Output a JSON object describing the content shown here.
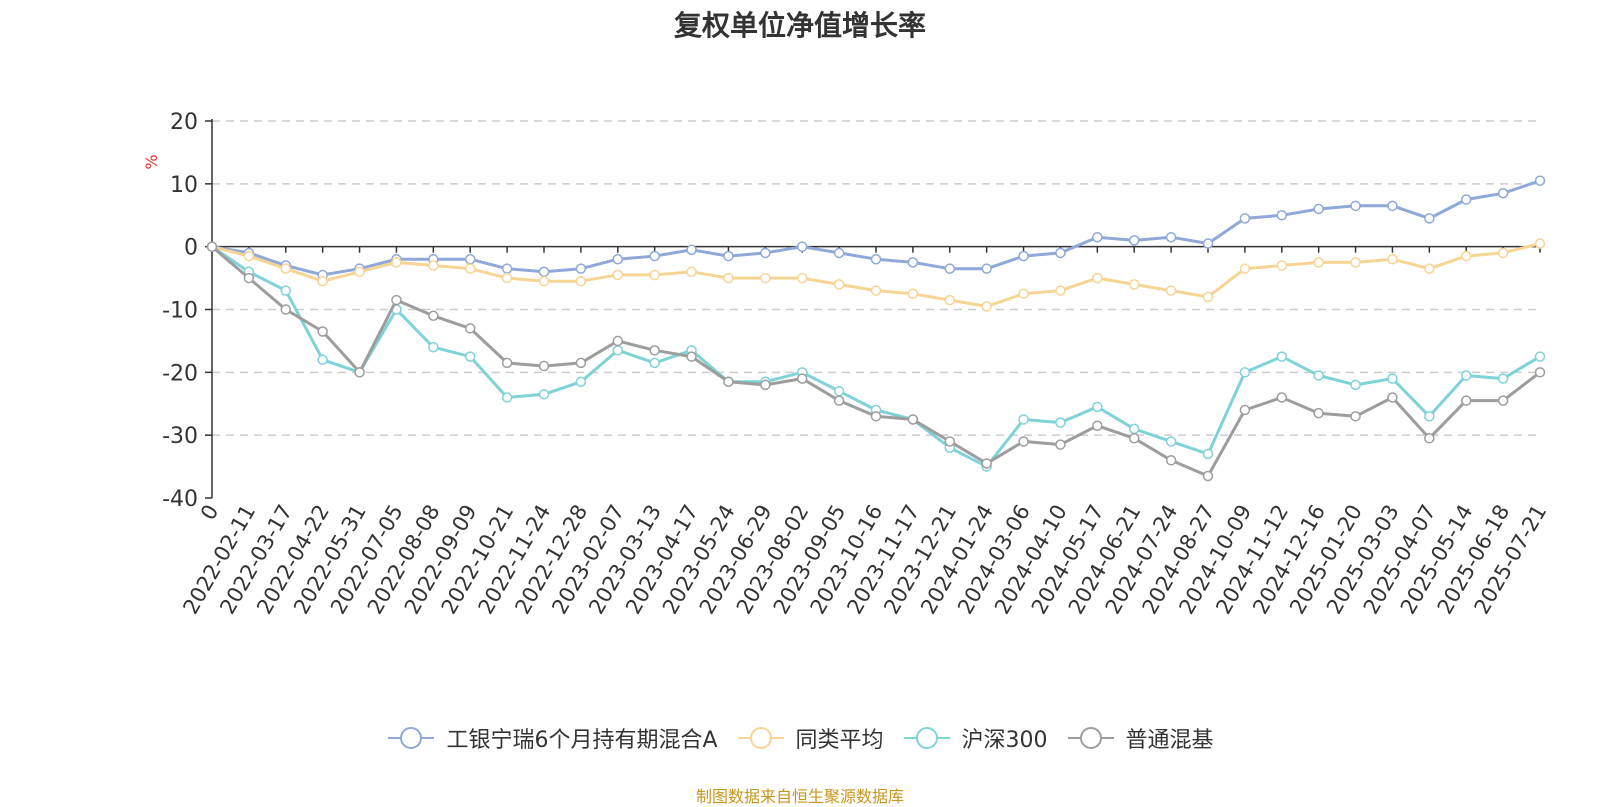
{
  "chart_data": {
    "type": "line",
    "title": "复权单位净值增长率",
    "ylabel": "%",
    "ylim": [
      -40,
      20
    ],
    "yticks": [
      20,
      10,
      0,
      -10,
      -20,
      -30,
      -40
    ],
    "grid": true,
    "legend_position": "bottom",
    "source": "制图数据来自恒生聚源数据库",
    "categories": [
      "0",
      "2022-02-11",
      "2022-03-17",
      "2022-04-22",
      "2022-05-31",
      "2022-07-05",
      "2022-08-08",
      "2022-09-09",
      "2022-10-21",
      "2022-11-24",
      "2022-12-28",
      "2023-02-07",
      "2023-03-13",
      "2023-04-17",
      "2023-05-24",
      "2023-06-29",
      "2023-08-02",
      "2023-09-05",
      "2023-10-16",
      "2023-11-17",
      "2023-12-21",
      "2024-01-24",
      "2024-03-06",
      "2024-04-10",
      "2024-05-17",
      "2024-06-21",
      "2024-07-24",
      "2024-08-27",
      "2024-10-09",
      "2024-11-12",
      "2024-12-16",
      "2025-01-20",
      "2025-03-03",
      "2025-04-07",
      "2025-05-14",
      "2025-06-18",
      "2025-07-21"
    ],
    "series": [
      {
        "name": "工银宁瑞6个月持有期混合A",
        "color": "#8fa8d8",
        "values": [
          0,
          -1,
          -3,
          -4.5,
          -3.5,
          -2,
          -2,
          -2,
          -3.5,
          -4,
          -3.5,
          -2,
          -1.5,
          -0.5,
          -1.5,
          -1,
          0,
          -1,
          -2,
          -2.5,
          -3.5,
          -3.5,
          -1.5,
          -1,
          1.5,
          1,
          1.5,
          0.5,
          4.5,
          5,
          6,
          6.5,
          6.5,
          4.5,
          7.5,
          8.5,
          10.5
        ]
      },
      {
        "name": "同类平均",
        "color": "#f6d594",
        "values": [
          0,
          -1.5,
          -3.5,
          -5.5,
          -4,
          -2.5,
          -3,
          -3.5,
          -5,
          -5.5,
          -5.5,
          -4.5,
          -4.5,
          -4,
          -5,
          -5,
          -5,
          -6,
          -7,
          -7.5,
          -8.5,
          -9.5,
          -7.5,
          -7,
          -5,
          -6,
          -7,
          -8,
          -3.5,
          -3,
          -2.5,
          -2.5,
          -2,
          -3.5,
          -1.5,
          -1,
          0.5
        ]
      },
      {
        "name": "沪深300",
        "color": "#7ed3d6",
        "values": [
          0,
          -4,
          -7,
          -18,
          -20,
          -10,
          -16,
          -17.5,
          -24,
          -23.5,
          -21.5,
          -16.5,
          -18.5,
          -16.5,
          -21.5,
          -21.5,
          -20,
          -23,
          -26,
          -27.5,
          -32,
          -35,
          -27.5,
          -28,
          -25.5,
          -29,
          -31,
          -33,
          -20,
          -17.5,
          -20.5,
          -22,
          -21,
          -27,
          -20.5,
          -21,
          -17.5
        ]
      },
      {
        "name": "普通混基",
        "color": "#9d9d9d",
        "values": [
          0,
          -5,
          -10,
          -13.5,
          -20,
          -8.5,
          -11,
          -13,
          -18.5,
          -19,
          -18.5,
          -15,
          -16.5,
          -17.5,
          -21.5,
          -22,
          -21,
          -24.5,
          -27,
          -27.5,
          -31,
          -34.5,
          -31,
          -31.5,
          -28.5,
          -30.5,
          -34,
          -36.5,
          -26,
          -24,
          -26.5,
          -27,
          -24,
          -30.5,
          -24.5,
          -24.5,
          -20
        ]
      }
    ]
  }
}
